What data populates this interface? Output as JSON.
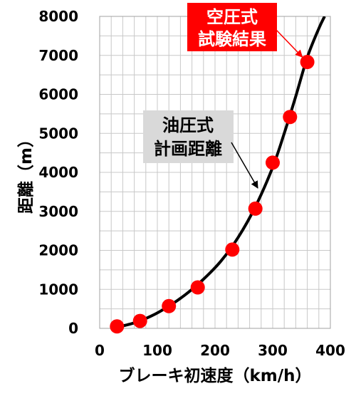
{
  "chart_data": {
    "type": "scatter",
    "xlabel": "ブレーキ初速度（km/h）",
    "ylabel": "距離（m）",
    "xlim": [
      0,
      400
    ],
    "ylim": [
      0,
      8000
    ],
    "xticks": [
      "0",
      "100",
      "200",
      "300",
      "400"
    ],
    "yticks": [
      "0",
      "1000",
      "2000",
      "3000",
      "4000",
      "5000",
      "6000",
      "7000",
      "8000"
    ],
    "grid": true,
    "series": [
      {
        "name": "空圧式試験結果",
        "type": "scatter",
        "color": "#ff0000",
        "x": [
          30,
          70,
          120,
          170,
          230,
          270,
          300,
          330,
          360
        ],
        "y": [
          50,
          190,
          570,
          1050,
          2020,
          3070,
          4250,
          5420,
          6830
        ]
      },
      {
        "name": "油圧式計画距離",
        "type": "line",
        "color": "#000000",
        "x": [
          30,
          60,
          90,
          120,
          150,
          180,
          210,
          240,
          270,
          300,
          320,
          340,
          360,
          380,
          390
        ],
        "y": [
          30,
          140,
          320,
          570,
          880,
          1260,
          1720,
          2330,
          3120,
          4130,
          5000,
          5950,
          6950,
          7690,
          8000
        ]
      }
    ],
    "annotations": [
      {
        "lines": [
          "空圧式",
          "試験結果"
        ],
        "target_series": "空圧式試験結果",
        "target_index": 8,
        "background": "#ff0000",
        "text_color": "#ffffff"
      },
      {
        "lines": [
          "油圧式",
          "計画距離"
        ],
        "target_series": "油圧式計画距離",
        "target_x": 270,
        "background": "#d9d9d9",
        "text_color": "#000000"
      }
    ]
  }
}
